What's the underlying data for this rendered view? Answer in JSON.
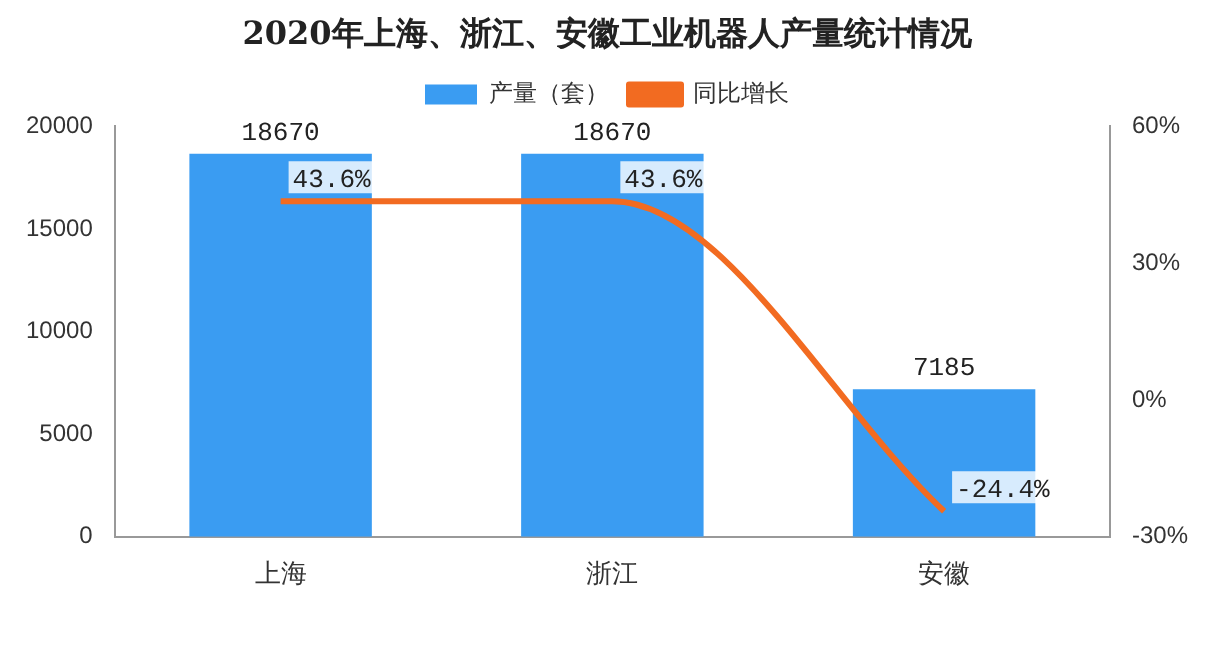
{
  "chart_data": {
    "type": "bar",
    "title": "2020年上海、浙江、安徽工业机器人产量统计情况",
    "categories": [
      "上海",
      "浙江",
      "安徽"
    ],
    "series": [
      {
        "name": "产量（套）",
        "color": "#3a9cf2",
        "values": [
          18670,
          18670,
          7185
        ],
        "value_labels": [
          "18670",
          "18670",
          "7185"
        ]
      },
      {
        "name": "同比增长",
        "type": "line",
        "axis": "y2",
        "color": "#f26b21",
        "values": [
          43.6,
          43.6,
          -24.4
        ],
        "value_labels": [
          "43.6%",
          "43.6%",
          "-24.4%"
        ]
      }
    ],
    "ylim": [
      0,
      20000
    ],
    "yticks": [
      0,
      5000,
      10000,
      15000,
      20000
    ],
    "y2lim": [
      -30,
      60
    ],
    "y2ticks": [
      {
        "value": -30,
        "label": "-30%"
      },
      {
        "value": 0,
        "label": "0%"
      },
      {
        "value": 30,
        "label": "30%"
      },
      {
        "value": 60,
        "label": "60%"
      }
    ],
    "legend": "top",
    "grid": false,
    "marker": "none"
  }
}
